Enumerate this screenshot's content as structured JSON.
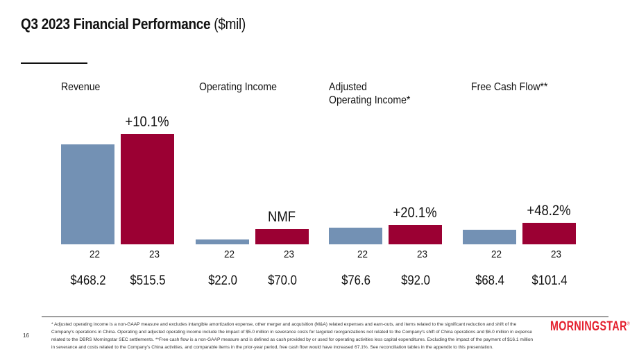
{
  "title": {
    "main": "Q3 2023 Financial Performance",
    "unit": "($mil)"
  },
  "chart_data": {
    "type": "bar",
    "title": "Q3 2023 Financial Performance ($mil)",
    "categories": [
      "22",
      "23"
    ],
    "colors": {
      "22": "#7391b4",
      "23": "#9b0033"
    },
    "ylim": [
      0,
      520
    ],
    "grid": false,
    "groups": [
      {
        "label": "Revenue",
        "values": [
          468.2,
          515.5
        ],
        "value_labels": [
          "$468.2",
          "$515.5"
        ],
        "change": "+10.1%"
      },
      {
        "label": "Operating Income",
        "values": [
          22.0,
          70.0
        ],
        "value_labels": [
          "$22.0",
          "$70.0"
        ],
        "change": "NMF"
      },
      {
        "label": "Adjusted\nOperating Income*",
        "values": [
          76.6,
          92.0
        ],
        "value_labels": [
          "$76.6",
          "$92.0"
        ],
        "change": "+20.1%"
      },
      {
        "label": "Free Cash Flow**",
        "values": [
          68.4,
          101.4
        ],
        "value_labels": [
          "$68.4",
          "$101.4"
        ],
        "change": "+48.2%"
      }
    ]
  },
  "footnote": "* Adjusted operating income is a non-GAAP measure and excludes intangible amortization expense, other merger and acquisition (M&A) related expenses and earn-outs, and items related to the significant reduction and shift of the Company's operations in China. Operating and adjusted operating income include the impact of $5.0 million in severance costs for targeted reorganizations not related to the Company's shift of China operations and $6.0 million in expense related to the DBRS Morningstar SEC settlements. **Free cash flow is a non-GAAP measure and is defined as cash provided by or used for operating activities less capital expenditures. Excluding the impact of the payment of $16.1 million in severance and costs related to the Company's China activities, and comparable items in the prior-year period, free cash flow would have increased 67.1%. See reconciliation tables in the appendix to this presentation.",
  "page_number": "16",
  "logo": "MORNINGSTAR"
}
